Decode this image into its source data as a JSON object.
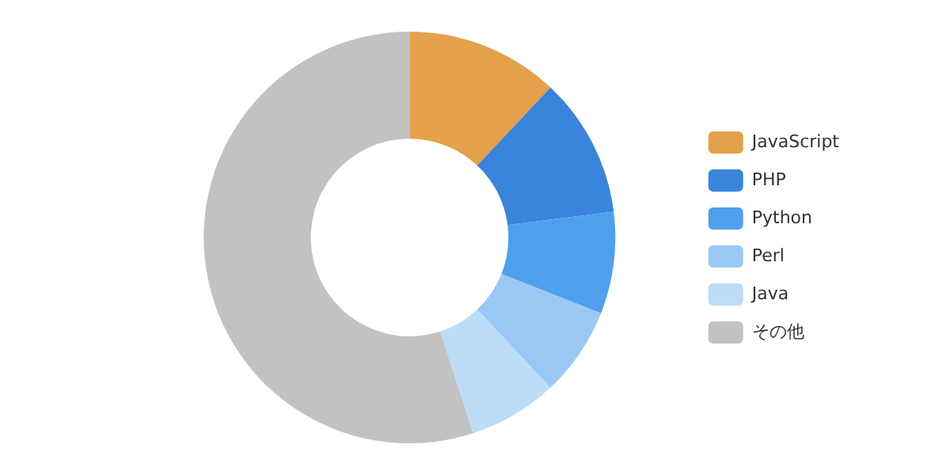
{
  "chart_data": {
    "type": "donut",
    "categories": [
      "JavaScript",
      "PHP",
      "Python",
      "Perl",
      "Java",
      "その他"
    ],
    "values": [
      12,
      11,
      8,
      7,
      7,
      55
    ],
    "colors": [
      "#e2a14a",
      "#3a84dc",
      "#4fa0ec",
      "#9ac8f5",
      "#bcdcf8",
      "#c2c2c2"
    ],
    "legend": "right"
  }
}
